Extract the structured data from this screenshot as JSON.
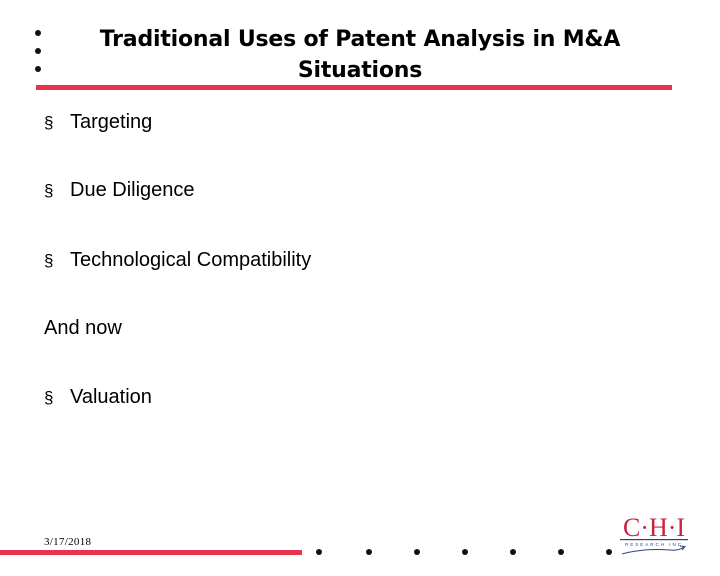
{
  "slide": {
    "title_line1": "Traditional Uses of Patent Analysis in M&A",
    "title_line2": "Situations",
    "bullet_mark": "§",
    "bullets_top": [
      {
        "text": "Targeting"
      },
      {
        "text": "Due Diligence"
      },
      {
        "text": "Technological Compatibility"
      }
    ],
    "interlude": "And now",
    "bullets_bottom": [
      {
        "text": "Valuation"
      }
    ],
    "date": "3/17/2018"
  },
  "logo": {
    "letters": "C·H·I",
    "tagline": "Research Inc."
  },
  "colors": {
    "accent": "#e8334f",
    "logo_red": "#c9243f",
    "logo_blue": "#2a3f8f"
  }
}
